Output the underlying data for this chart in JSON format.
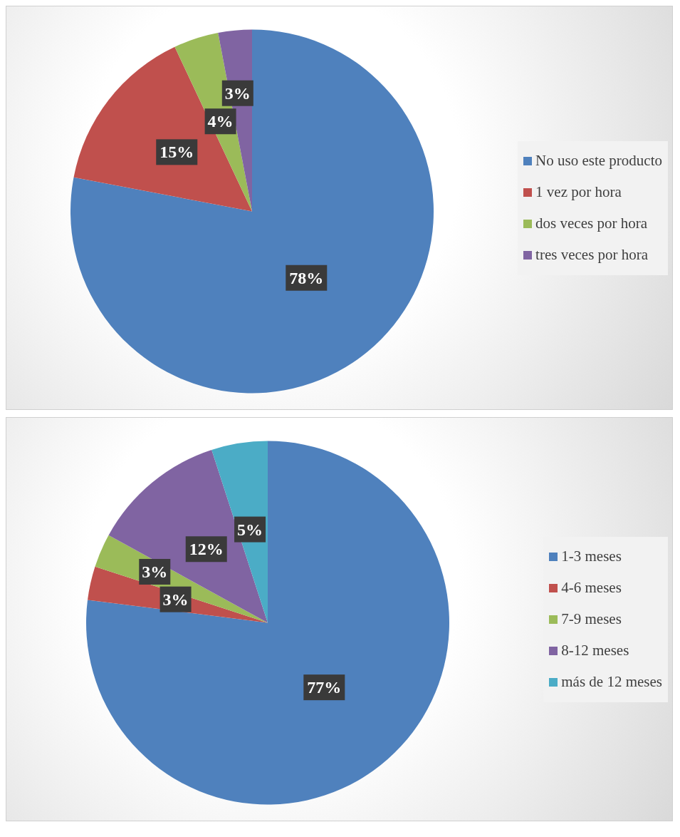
{
  "chart_data": [
    {
      "type": "pie",
      "categories": [
        "No uso este producto",
        "1 vez por hora",
        "dos veces por hora",
        "tres veces por hora"
      ],
      "values": [
        78,
        15,
        4,
        3
      ],
      "colors": [
        "#4f81bd",
        "#c0504d",
        "#9bbb59",
        "#8064a2"
      ],
      "value_labels": [
        "78%",
        "15%",
        "4%",
        "3%"
      ],
      "legend": "right"
    },
    {
      "type": "pie",
      "categories": [
        "1-3 meses",
        "4-6 meses",
        "7-9 meses",
        "8-12 meses",
        "más de 12 meses"
      ],
      "values": [
        77,
        3,
        3,
        12,
        5
      ],
      "colors": [
        "#4f81bd",
        "#c0504d",
        "#9bbb59",
        "#8064a2",
        "#4bacc6"
      ],
      "value_labels": [
        "77%",
        "3%",
        "3%",
        "12%",
        "5%"
      ],
      "legend": "right"
    }
  ]
}
